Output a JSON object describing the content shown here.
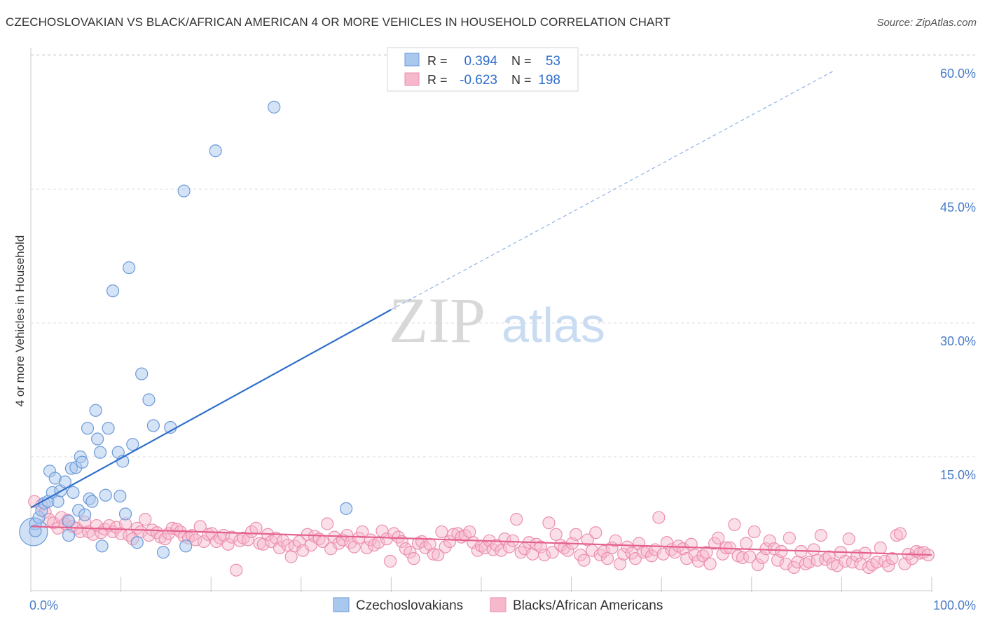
{
  "title": "CZECHOSLOVAKIAN VS BLACK/AFRICAN AMERICAN 4 OR MORE VEHICLES IN HOUSEHOLD CORRELATION CHART",
  "source": "Source: ZipAtlas.com",
  "watermark": {
    "zip": "ZIP",
    "atlas": "atlas"
  },
  "colors": {
    "blue_fill": "#a9c8ee",
    "blue_stroke": "#6d9ad9",
    "blue_line": "#2f6fcc",
    "pink_fill": "#f6b8cb",
    "pink_stroke": "#ec8fad",
    "pink_line": "#e4618d",
    "tick_text": "#4a7cc9",
    "grid": "#dddddd"
  },
  "stats": {
    "rows": [
      {
        "r_label": "R =",
        "r_value": "0.394",
        "n_label": "N =",
        "n_value": "53"
      },
      {
        "r_label": "R =",
        "r_value": "-0.623",
        "n_label": "N =",
        "n_value": "198"
      }
    ]
  },
  "chart_data": {
    "type": "scatter",
    "ylabel": "4 or more Vehicles in Household",
    "xlabel": "",
    "xlim": [
      0,
      100
    ],
    "ylim": [
      0,
      63
    ],
    "x_tick_labels": {
      "left": "0.0%",
      "right": "100.0%"
    },
    "y_ticks": [
      {
        "value": 15,
        "label": "15.0%"
      },
      {
        "value": 30,
        "label": "30.0%"
      },
      {
        "value": 45,
        "label": "45.0%"
      },
      {
        "value": 60,
        "label": "60.0%"
      }
    ],
    "grid": true,
    "legend": {
      "position": "bottom",
      "items": [
        "Czechoslovakians",
        "Blacks/African Americans"
      ]
    },
    "series": [
      {
        "name": "Czechoslovakians",
        "color": "blue",
        "trend": {
          "x1": 0,
          "y1": 9.3,
          "x2": 40,
          "y2": 31.5,
          "dash_to_x": 89,
          "dash_to_y": 58.2
        },
        "points": [
          [
            0.5,
            7.5
          ],
          [
            0.9,
            8.2
          ],
          [
            1.2,
            9.0
          ],
          [
            1.5,
            9.8
          ],
          [
            1.9,
            10.0
          ],
          [
            2.1,
            13.4
          ],
          [
            2.4,
            11.0
          ],
          [
            2.7,
            12.6
          ],
          [
            3.0,
            10.0
          ],
          [
            3.3,
            11.2
          ],
          [
            3.8,
            12.2
          ],
          [
            4.2,
            7.8
          ],
          [
            4.2,
            6.2
          ],
          [
            4.5,
            13.7
          ],
          [
            4.7,
            11.0
          ],
          [
            5.0,
            13.8
          ],
          [
            5.3,
            9.0
          ],
          [
            5.5,
            15.0
          ],
          [
            5.7,
            14.4
          ],
          [
            6.0,
            8.5
          ],
          [
            6.3,
            18.2
          ],
          [
            6.5,
            10.3
          ],
          [
            6.8,
            10.0
          ],
          [
            7.2,
            20.2
          ],
          [
            7.4,
            17.0
          ],
          [
            7.7,
            15.5
          ],
          [
            7.9,
            5.0
          ],
          [
            8.3,
            10.7
          ],
          [
            8.6,
            18.2
          ],
          [
            9.1,
            33.6
          ],
          [
            9.7,
            15.5
          ],
          [
            9.9,
            10.6
          ],
          [
            10.2,
            14.5
          ],
          [
            10.5,
            8.6
          ],
          [
            10.9,
            36.2
          ],
          [
            11.3,
            16.4
          ],
          [
            11.8,
            5.4
          ],
          [
            12.3,
            24.3
          ],
          [
            13.1,
            21.4
          ],
          [
            13.6,
            18.5
          ],
          [
            14.7,
            4.3
          ],
          [
            15.5,
            18.3
          ],
          [
            17.0,
            44.8
          ],
          [
            17.2,
            5.0
          ],
          [
            20.5,
            49.3
          ],
          [
            27.0,
            54.2
          ],
          [
            35.0,
            9.2
          ],
          [
            0.5,
            6.7
          ]
        ],
        "big_point": [
          0.3,
          6.6
        ]
      },
      {
        "name": "Blacks/African Americans",
        "color": "pink",
        "trend": {
          "x1": 0,
          "y1": 7.2,
          "x2": 100,
          "y2": 4.0
        },
        "points": [
          [
            0.4,
            10.0
          ],
          [
            1.2,
            9.6
          ],
          [
            1.6,
            8.8
          ],
          [
            2.0,
            8.0
          ],
          [
            2.5,
            7.6
          ],
          [
            3.0,
            7.0
          ],
          [
            3.4,
            8.2
          ],
          [
            3.8,
            7.5
          ],
          [
            4.1,
            7.9
          ],
          [
            4.6,
            7.2
          ],
          [
            5.1,
            7.0
          ],
          [
            5.5,
            6.6
          ],
          [
            6.0,
            7.7
          ],
          [
            6.4,
            6.6
          ],
          [
            6.9,
            6.3
          ],
          [
            7.3,
            7.3
          ],
          [
            7.8,
            6.5
          ],
          [
            8.2,
            6.9
          ],
          [
            8.7,
            7.3
          ],
          [
            9.1,
            6.6
          ],
          [
            9.5,
            7.1
          ],
          [
            10.0,
            6.4
          ],
          [
            10.5,
            7.5
          ],
          [
            10.9,
            6.2
          ],
          [
            11.3,
            5.8
          ],
          [
            11.8,
            7.0
          ],
          [
            12.2,
            6.6
          ],
          [
            12.7,
            8.0
          ],
          [
            13.1,
            6.2
          ],
          [
            13.5,
            6.8
          ],
          [
            14.0,
            6.5
          ],
          [
            14.4,
            6.0
          ],
          [
            14.9,
            5.8
          ],
          [
            15.3,
            6.4
          ],
          [
            15.7,
            7.0
          ],
          [
            16.2,
            6.9
          ],
          [
            16.6,
            6.6
          ],
          [
            17.0,
            6.1
          ],
          [
            17.5,
            5.9
          ],
          [
            17.9,
            6.2
          ],
          [
            18.3,
            5.7
          ],
          [
            18.8,
            7.2
          ],
          [
            19.2,
            5.5
          ],
          [
            19.7,
            6.3
          ],
          [
            20.1,
            6.4
          ],
          [
            20.6,
            5.5
          ],
          [
            21.0,
            5.9
          ],
          [
            21.4,
            6.2
          ],
          [
            21.9,
            5.2
          ],
          [
            22.3,
            6.0
          ],
          [
            22.8,
            2.3
          ],
          [
            23.2,
            5.6
          ],
          [
            23.6,
            5.9
          ],
          [
            24.1,
            5.7
          ],
          [
            24.5,
            6.6
          ],
          [
            25.0,
            7.0
          ],
          [
            25.4,
            5.3
          ],
          [
            25.8,
            5.2
          ],
          [
            26.3,
            6.3
          ],
          [
            26.7,
            5.5
          ],
          [
            27.2,
            5.9
          ],
          [
            27.6,
            4.8
          ],
          [
            28.0,
            5.6
          ],
          [
            28.5,
            5.1
          ],
          [
            28.9,
            3.8
          ],
          [
            29.3,
            5.0
          ],
          [
            29.8,
            5.5
          ],
          [
            30.2,
            4.5
          ],
          [
            30.7,
            6.3
          ],
          [
            31.1,
            5.1
          ],
          [
            31.5,
            6.1
          ],
          [
            32.0,
            5.8
          ],
          [
            32.4,
            5.5
          ],
          [
            32.9,
            7.5
          ],
          [
            33.3,
            4.7
          ],
          [
            33.7,
            6.0
          ],
          [
            34.2,
            5.3
          ],
          [
            34.6,
            5.7
          ],
          [
            35.1,
            6.2
          ],
          [
            35.5,
            5.4
          ],
          [
            35.9,
            4.9
          ],
          [
            36.4,
            5.9
          ],
          [
            36.8,
            6.6
          ],
          [
            37.3,
            4.8
          ],
          [
            37.7,
            5.7
          ],
          [
            38.1,
            5.1
          ],
          [
            38.6,
            5.4
          ],
          [
            39.0,
            6.7
          ],
          [
            39.5,
            5.8
          ],
          [
            39.9,
            3.3
          ],
          [
            40.3,
            6.4
          ],
          [
            40.8,
            6.0
          ],
          [
            41.2,
            5.5
          ],
          [
            41.6,
            4.7
          ],
          [
            42.1,
            4.3
          ],
          [
            42.5,
            3.6
          ],
          [
            43.0,
            5.3
          ],
          [
            43.4,
            5.5
          ],
          [
            43.8,
            4.8
          ],
          [
            44.3,
            5.2
          ],
          [
            44.7,
            4.1
          ],
          [
            45.2,
            4.0
          ],
          [
            45.6,
            6.6
          ],
          [
            46.0,
            4.9
          ],
          [
            46.5,
            5.5
          ],
          [
            46.9,
            6.3
          ],
          [
            47.4,
            6.4
          ],
          [
            47.8,
            6.0
          ],
          [
            48.2,
            6.2
          ],
          [
            48.7,
            6.6
          ],
          [
            49.1,
            5.4
          ],
          [
            49.6,
            4.5
          ],
          [
            50.0,
            5.0
          ],
          [
            50.4,
            4.8
          ],
          [
            50.9,
            5.6
          ],
          [
            51.3,
            4.6
          ],
          [
            51.7,
            5.1
          ],
          [
            52.2,
            4.5
          ],
          [
            52.6,
            5.8
          ],
          [
            53.1,
            4.9
          ],
          [
            53.5,
            5.6
          ],
          [
            53.9,
            8.0
          ],
          [
            54.4,
            4.3
          ],
          [
            54.8,
            4.7
          ],
          [
            55.3,
            5.4
          ],
          [
            55.7,
            4.1
          ],
          [
            56.1,
            5.2
          ],
          [
            56.6,
            4.9
          ],
          [
            57.0,
            4.0
          ],
          [
            57.5,
            7.6
          ],
          [
            57.9,
            4.3
          ],
          [
            58.3,
            6.3
          ],
          [
            58.8,
            5.1
          ],
          [
            59.2,
            4.8
          ],
          [
            59.6,
            4.5
          ],
          [
            60.1,
            5.3
          ],
          [
            60.5,
            6.3
          ],
          [
            61.0,
            4.0
          ],
          [
            61.4,
            3.4
          ],
          [
            61.8,
            5.7
          ],
          [
            62.3,
            4.5
          ],
          [
            62.7,
            6.5
          ],
          [
            63.2,
            4.0
          ],
          [
            63.6,
            4.4
          ],
          [
            64.0,
            3.6
          ],
          [
            64.5,
            4.8
          ],
          [
            64.9,
            5.6
          ],
          [
            65.4,
            3.0
          ],
          [
            65.8,
            4.1
          ],
          [
            66.2,
            4.9
          ],
          [
            66.7,
            4.2
          ],
          [
            67.1,
            3.6
          ],
          [
            67.5,
            5.3
          ],
          [
            68.0,
            4.3
          ],
          [
            68.4,
            4.4
          ],
          [
            68.9,
            3.9
          ],
          [
            69.3,
            4.6
          ],
          [
            69.7,
            8.2
          ],
          [
            70.2,
            4.1
          ],
          [
            70.6,
            5.4
          ],
          [
            71.1,
            4.6
          ],
          [
            71.5,
            4.3
          ],
          [
            71.9,
            5.0
          ],
          [
            72.4,
            4.7
          ],
          [
            72.8,
            3.6
          ],
          [
            73.3,
            5.2
          ],
          [
            73.7,
            4.0
          ],
          [
            74.1,
            3.3
          ],
          [
            74.6,
            3.9
          ],
          [
            75.0,
            4.3
          ],
          [
            75.4,
            3.0
          ],
          [
            75.9,
            5.3
          ],
          [
            76.3,
            5.9
          ],
          [
            76.8,
            4.1
          ],
          [
            77.2,
            4.8
          ],
          [
            77.6,
            4.8
          ],
          [
            78.1,
            7.4
          ],
          [
            78.5,
            3.9
          ],
          [
            79.0,
            3.7
          ],
          [
            79.4,
            5.3
          ],
          [
            79.8,
            3.8
          ],
          [
            80.3,
            6.6
          ],
          [
            80.7,
            2.9
          ],
          [
            81.2,
            3.7
          ],
          [
            81.6,
            4.7
          ],
          [
            82.0,
            5.6
          ],
          [
            82.5,
            4.7
          ],
          [
            82.9,
            3.4
          ],
          [
            83.3,
            4.4
          ],
          [
            83.8,
            3.0
          ],
          [
            84.2,
            5.9
          ],
          [
            84.7,
            2.6
          ],
          [
            85.1,
            3.2
          ],
          [
            85.5,
            4.4
          ],
          [
            86.0,
            3.0
          ],
          [
            86.4,
            3.2
          ],
          [
            86.9,
            4.6
          ],
          [
            87.3,
            3.4
          ],
          [
            87.7,
            6.2
          ],
          [
            88.2,
            3.5
          ],
          [
            88.6,
            3.8
          ],
          [
            89.0,
            3.0
          ],
          [
            89.5,
            2.8
          ],
          [
            89.9,
            4.3
          ],
          [
            90.4,
            3.3
          ],
          [
            90.8,
            5.8
          ],
          [
            91.2,
            3.2
          ],
          [
            91.7,
            3.9
          ],
          [
            92.1,
            3.0
          ],
          [
            92.6,
            4.2
          ],
          [
            93.0,
            2.6
          ],
          [
            93.4,
            2.9
          ],
          [
            93.9,
            3.2
          ],
          [
            94.3,
            4.8
          ],
          [
            94.8,
            3.3
          ],
          [
            95.2,
            2.8
          ],
          [
            95.6,
            3.6
          ],
          [
            96.1,
            6.2
          ],
          [
            96.5,
            6.4
          ],
          [
            97.0,
            3.0
          ],
          [
            97.4,
            4.1
          ],
          [
            97.8,
            3.6
          ],
          [
            98.3,
            4.4
          ],
          [
            98.7,
            4.2
          ],
          [
            99.1,
            4.3
          ],
          [
            99.6,
            4.0
          ]
        ]
      }
    ]
  }
}
